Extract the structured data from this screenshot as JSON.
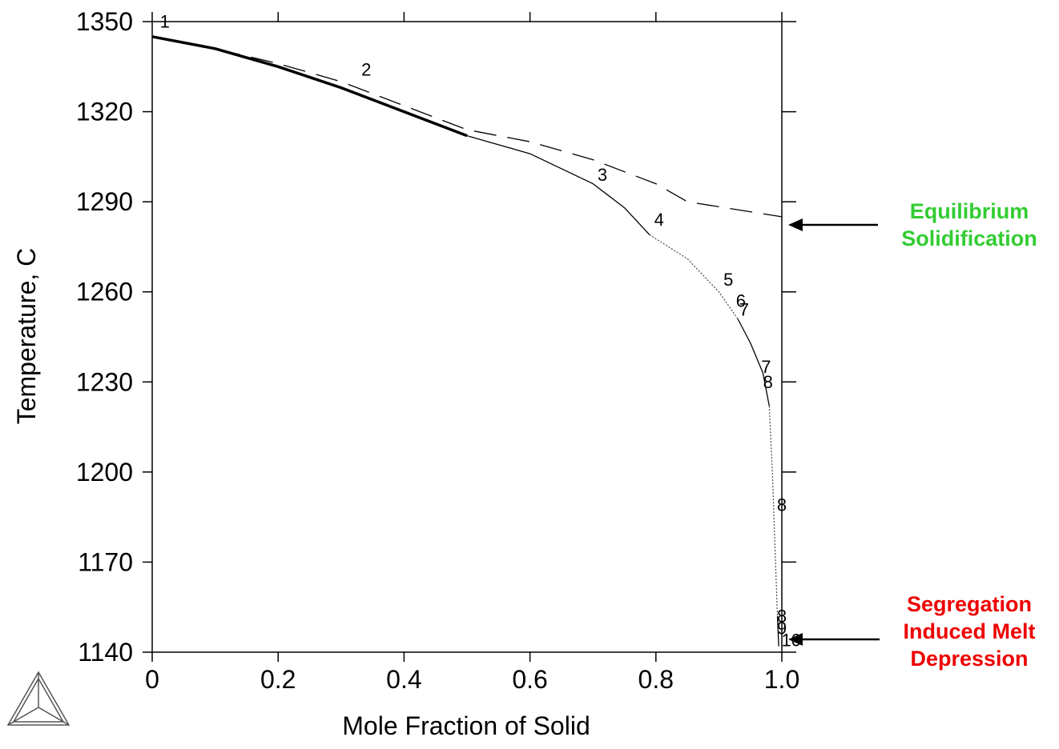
{
  "chart_data": {
    "type": "line",
    "xlabel": "Mole Fraction of Solid",
    "ylabel": "Temperature, C",
    "xlim": [
      0,
      1.0
    ],
    "ylim": [
      1140,
      1350
    ],
    "x_ticks": [
      "0",
      "0.2",
      "0.4",
      "0.6",
      "0.8",
      "1.0"
    ],
    "y_ticks": [
      "1140",
      "1170",
      "1200",
      "1230",
      "1260",
      "1290",
      "1320",
      "1350"
    ],
    "grid": false,
    "series": [
      {
        "style": "dashed",
        "x": [
          0,
          0.1,
          0.2,
          0.3,
          0.4,
          0.5,
          0.6,
          0.7,
          0.8,
          0.85,
          1.0
        ],
        "y": [
          1345,
          1341,
          1336,
          1330,
          1322,
          1314,
          1310,
          1304,
          1296,
          1290,
          1285
        ]
      },
      {
        "style": "solid-thick",
        "x": [
          0,
          0.1,
          0.2,
          0.3,
          0.4,
          0.5
        ],
        "y": [
          1345,
          1341,
          1335,
          1328,
          1320,
          1312
        ]
      },
      {
        "style": "solid",
        "x": [
          0.5,
          0.6,
          0.7,
          0.75,
          0.79
        ],
        "y": [
          1312,
          1306,
          1296,
          1288,
          1279
        ]
      },
      {
        "style": "dotted",
        "x": [
          0.79,
          0.85,
          0.9,
          0.93
        ],
        "y": [
          1279,
          1271,
          1260,
          1251
        ]
      },
      {
        "style": "solid",
        "x": [
          0.93,
          0.95,
          0.97,
          0.98
        ],
        "y": [
          1251,
          1243,
          1233,
          1222
        ]
      },
      {
        "style": "dotted",
        "x": [
          0.98,
          0.985,
          0.99,
          0.993
        ],
        "y": [
          1222,
          1200,
          1170,
          1152
        ]
      },
      {
        "style": "solid",
        "x": [
          0.993,
          0.994,
          0.995
        ],
        "y": [
          1152,
          1147,
          1142
        ]
      }
    ],
    "curve_labels": [
      {
        "text": "1",
        "x": 0.02,
        "y": 1348
      },
      {
        "text": "2",
        "x": 0.34,
        "y": 1332
      },
      {
        "text": "3",
        "x": 0.715,
        "y": 1297
      },
      {
        "text": "4",
        "x": 0.805,
        "y": 1282
      },
      {
        "text": "5",
        "x": 0.915,
        "y": 1262
      },
      {
        "text": "6",
        "x": 0.935,
        "y": 1255
      },
      {
        "text": "7",
        "x": 0.94,
        "y": 1252
      },
      {
        "text": "7",
        "x": 0.975,
        "y": 1233
      },
      {
        "text": "8",
        "x": 0.978,
        "y": 1228
      },
      {
        "text": "8",
        "x": 1.0,
        "y": 1187
      },
      {
        "text": "8",
        "x": 1.0,
        "y": 1150
      },
      {
        "text": "9",
        "x": 1.0,
        "y": 1146
      },
      {
        "text": "10",
        "x": 1.015,
        "y": 1142
      }
    ],
    "annotations": [
      {
        "lines": [
          "Equilibrium",
          "Solidification"
        ],
        "color": "#33cc33",
        "arrow_to": {
          "x": 1.0,
          "y": 1284
        }
      },
      {
        "lines": [
          "Segregation",
          "Induced Melt",
          "Depression"
        ],
        "color": "#ee0000",
        "arrow_to": {
          "x": 1.0,
          "y": 1140
        }
      }
    ]
  }
}
